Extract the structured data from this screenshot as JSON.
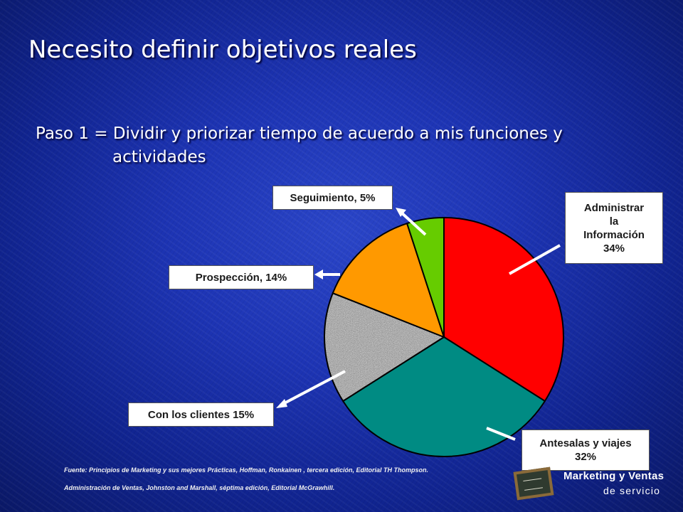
{
  "slide": {
    "title": "Necesito definir objetivos reales",
    "subtitle_line1": "Paso 1 = Dividir y priorizar tiempo de acuerdo a mis funciones y",
    "subtitle_line2": "actividades"
  },
  "chart_data": {
    "type": "pie",
    "slices": [
      {
        "label": "Administrar la Información 34%",
        "value": 34,
        "color": "#ff0000"
      },
      {
        "label": "Antesalas y viajes 32%",
        "value": 32,
        "color": "#008b83"
      },
      {
        "label": "Con los clientes 15%",
        "value": 15,
        "color": "#9a9a9a"
      },
      {
        "label": "Prospección, 14%",
        "value": 14,
        "color": "#ff9900"
      },
      {
        "label": "Seguimiento, 5%",
        "value": 5,
        "color": "#66cc00"
      }
    ]
  },
  "labels": {
    "administrar_line1": "Administrar",
    "administrar_line2": "la",
    "administrar_line3": "Información",
    "administrar_line4": "34%",
    "antesalas_line1": "Antesalas y viajes",
    "antesalas_line2": "32%",
    "clientes": "Con los clientes 15%",
    "prospeccion": "Prospección, 14%",
    "seguimiento": "Seguimiento, 5%"
  },
  "sources": {
    "line1": "Fuente: Principios de Marketing y sus mejores Prácticas, Hoffman, Ronkainen , tercera edición, Editorial TH Thompson.",
    "line2": "Administración de Ventas, Johnston and Marshall, séptima edición, Editorial McGrawhill."
  },
  "logo": {
    "line1": "Marketing y Ventas",
    "line2": "de servicio"
  }
}
